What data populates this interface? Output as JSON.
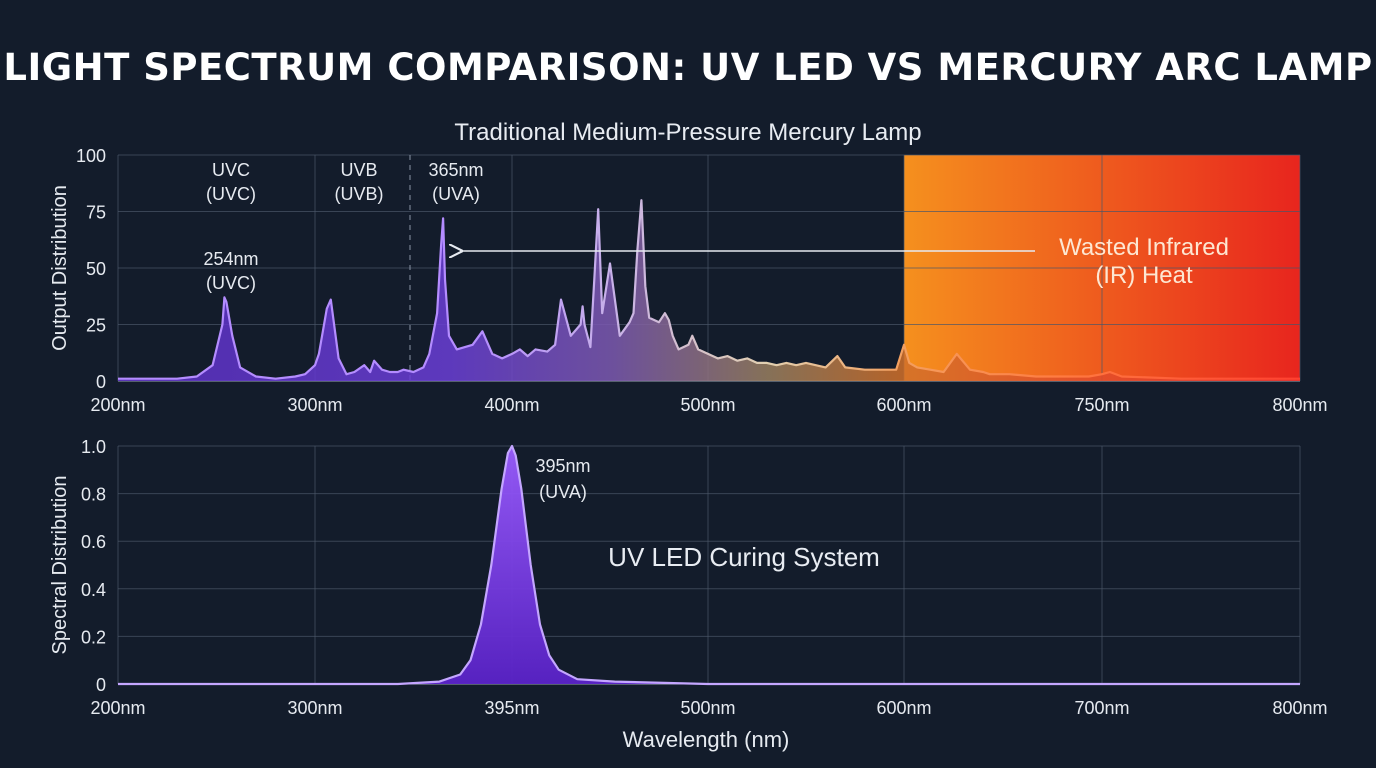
{
  "title": "LIGHT SPECTRUM COMPARISON: UV LED VS MERCURY ARC LAMP",
  "colors": {
    "background": "#131c2b",
    "uv_purple": "#8b5cf6",
    "uv_purple_light": "#c4a6ff",
    "ir_orange": "#f5901e",
    "ir_red": "#e8251e",
    "grid": "#4a5568"
  },
  "chart_data": [
    {
      "type": "line",
      "title": "Traditional Medium-Pressure Mercury Lamp",
      "ylabel": "Output Distribution",
      "xlabel": "",
      "ylim": [
        0,
        100
      ],
      "yticks": [
        "0",
        "25",
        "50",
        "75",
        "100"
      ],
      "xtick_labels": [
        "200nm",
        "300nm",
        "400nm",
        "500nm",
        "600nm",
        "750nm",
        "800nm"
      ],
      "grid": true,
      "ir_region_start_nm": 600,
      "ir_region_end_nm": 800,
      "series": [
        {
          "x": [
            200,
            210,
            230,
            240,
            248,
            253,
            254,
            255,
            258,
            262,
            270,
            280,
            290,
            295,
            300,
            302,
            306,
            308,
            312,
            316,
            320,
            325,
            328,
            330,
            334,
            338,
            342,
            345,
            350,
            355,
            358,
            362,
            364,
            365,
            366,
            368,
            372,
            380,
            385,
            390,
            395,
            400,
            404,
            408,
            412,
            418,
            422,
            425,
            430,
            435,
            436,
            437,
            440,
            442,
            444,
            446,
            450,
            455,
            460,
            462,
            464,
            466,
            468,
            470,
            475,
            478,
            480,
            482,
            485,
            490,
            492,
            495,
            500,
            505,
            510,
            515,
            520,
            525,
            530,
            535,
            540,
            545,
            550,
            560,
            566,
            570,
            580,
            590,
            596,
            600,
            604,
            610,
            620,
            630,
            640,
            650,
            660,
            665,
            670,
            680,
            700,
            720,
            740,
            750,
            752,
            755,
            770,
            790,
            800
          ],
          "y": [
            1,
            1,
            1,
            2,
            7,
            25,
            37,
            35,
            20,
            6,
            2,
            1,
            2,
            3,
            7,
            12,
            32,
            36,
            10,
            3,
            4,
            7,
            4,
            9,
            5,
            4,
            4,
            5,
            4,
            6,
            12,
            30,
            60,
            72,
            45,
            20,
            14,
            16,
            22,
            12,
            10,
            12,
            14,
            11,
            14,
            13,
            16,
            36,
            20,
            25,
            33,
            25,
            15,
            45,
            76,
            30,
            52,
            20,
            26,
            30,
            58,
            80,
            42,
            28,
            26,
            30,
            27,
            20,
            14,
            16,
            20,
            14,
            12,
            10,
            11,
            9,
            10,
            8,
            8,
            7,
            8,
            7,
            8,
            6,
            11,
            6,
            5,
            5,
            5,
            16,
            8,
            6,
            5,
            4,
            12,
            5,
            4,
            3,
            3,
            3,
            2,
            2,
            2,
            3,
            4,
            2,
            1,
            1,
            1
          ]
        }
      ],
      "annotations": [
        {
          "text": "UVC",
          "sub": "(UVC)",
          "x_nm": 254
        },
        {
          "text": "UVB",
          "sub": "(UVB)",
          "x_nm": 312
        },
        {
          "text": "365nm",
          "sub": "(UVA)",
          "x_nm": 365
        },
        {
          "text": "254nm",
          "sub": "(UVC)",
          "x_nm": 254
        },
        {
          "text": "Wasted Infrared",
          "sub": "(IR) Heat",
          "x_nm": 700
        }
      ]
    },
    {
      "type": "area",
      "title": "UV LED Curing System",
      "ylabel": "Spectral Distribution",
      "xlabel": "Wavelength (nm)",
      "xlim": [
        200,
        800
      ],
      "ylim": [
        0,
        1.0
      ],
      "yticks": [
        "0",
        "0.2",
        "0.4",
        "0.6",
        "0.8",
        "1.0"
      ],
      "xtick_labels": [
        "200nm",
        "300nm",
        "395nm",
        "500nm",
        "600nm",
        "700nm",
        "800nm"
      ],
      "grid": true,
      "series": [
        {
          "x": [
            200,
            340,
            360,
            370,
            375,
            380,
            385,
            390,
            393,
            395,
            397,
            400,
            405,
            410,
            415,
            420,
            430,
            450,
            500,
            800
          ],
          "y": [
            0,
            0,
            0.01,
            0.04,
            0.1,
            0.25,
            0.5,
            0.82,
            0.97,
            1.0,
            0.96,
            0.82,
            0.5,
            0.25,
            0.12,
            0.06,
            0.02,
            0.01,
            0,
            0
          ]
        }
      ],
      "annotations": [
        {
          "text": "395nm",
          "sub": "(UVA)",
          "x_nm": 395
        }
      ]
    }
  ]
}
